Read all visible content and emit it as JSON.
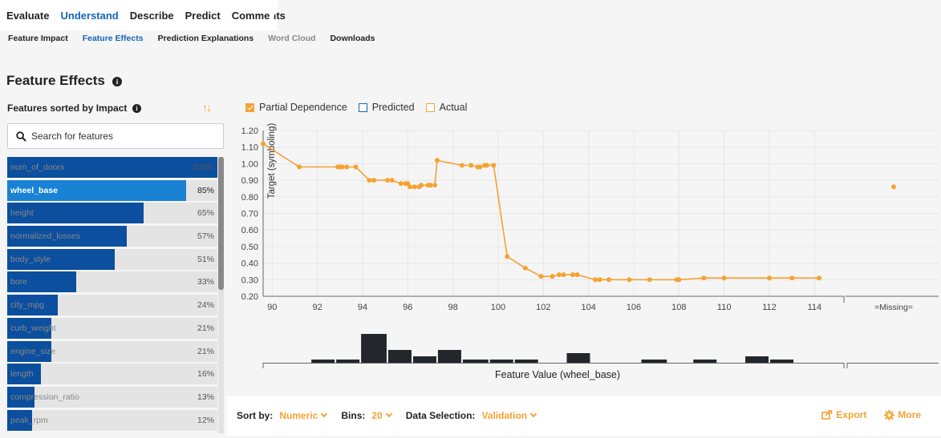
{
  "top_tabs": [
    "Evaluate",
    "Understand",
    "Describe",
    "Predict",
    "Comments"
  ],
  "sub_tabs": [
    "Feature Impact",
    "Feature Effects",
    "Prediction Explanations",
    "Word Cloud",
    "Downloads"
  ],
  "page_title": "Feature Effects",
  "sidebar": {
    "title": "Features sorted by Impact",
    "search_placeholder": "Search for features",
    "features": [
      {
        "name": "num_of_doors",
        "pct_label": "100%",
        "impact": 1.0
      },
      {
        "name": "wheel_base",
        "pct_label": "85%",
        "impact": 0.85,
        "selected": true
      },
      {
        "name": "height",
        "pct_label": "65%",
        "impact": 0.65
      },
      {
        "name": "normalized_losses",
        "pct_label": "57%",
        "impact": 0.57
      },
      {
        "name": "body_style",
        "pct_label": "51%",
        "impact": 0.51
      },
      {
        "name": "bore",
        "pct_label": "33%",
        "impact": 0.33
      },
      {
        "name": "city_mpg",
        "pct_label": "24%",
        "impact": 0.24
      },
      {
        "name": "curb_weight",
        "pct_label": "21%",
        "impact": 0.21
      },
      {
        "name": "engine_size",
        "pct_label": "21%",
        "impact": 0.21
      },
      {
        "name": "length",
        "pct_label": "16%",
        "impact": 0.16
      },
      {
        "name": "compression_ratio",
        "pct_label": "13%",
        "impact": 0.13
      },
      {
        "name": "peak_rpm",
        "pct_label": "12%",
        "impact": 0.12
      }
    ]
  },
  "legend": {
    "partial": "Partial Dependence",
    "predicted": "Predicted",
    "actual": "Actual"
  },
  "colors": {
    "accent": "#f5a233",
    "primary": "#1565b4",
    "bar_dark": "#0b4f9e",
    "bar_selected": "#1a82d4",
    "histogram": "#23272b"
  },
  "chart_data": {
    "type": "line",
    "ylabel": "Target (symboling)",
    "xlabel": "Feature Value (wheel_base)",
    "ylim": [
      0.2,
      1.2
    ],
    "yticks": [
      0.2,
      0.3,
      0.4,
      0.5,
      0.6,
      0.7,
      0.8,
      0.9,
      1.0,
      1.1,
      1.2
    ],
    "ytick_labels": [
      "0.20",
      "0.30",
      "0.40",
      "0.50",
      "0.60",
      "0.70",
      "0.80",
      "0.90",
      "1.00",
      "1.10",
      "1.20"
    ],
    "xlim": [
      89.6,
      115.3
    ],
    "xticks": [
      90,
      92,
      94,
      96,
      98,
      100,
      102,
      104,
      106,
      108,
      110,
      112,
      114
    ],
    "grid": true,
    "series": [
      {
        "name": "Partial Dependence",
        "x": [
          89.6,
          91.2,
          92.9,
          93.0,
          93.1,
          93.3,
          93.7,
          94.3,
          94.5,
          95.1,
          95.3,
          95.7,
          95.9,
          96.0,
          96.1,
          96.3,
          96.5,
          96.6,
          96.9,
          97.0,
          97.2,
          97.3,
          98.4,
          98.8,
          99.1,
          99.2,
          99.4,
          99.5,
          99.8,
          100.4,
          101.2,
          101.9,
          102.4,
          102.7,
          102.9,
          103.3,
          103.5,
          104.3,
          104.5,
          104.9,
          105.8,
          106.7,
          107.9,
          108.0,
          109.1,
          110.0,
          112.0,
          113.0,
          114.2
        ],
        "y": [
          1.12,
          0.98,
          0.98,
          0.98,
          0.98,
          0.98,
          0.98,
          0.9,
          0.9,
          0.9,
          0.9,
          0.88,
          0.88,
          0.88,
          0.86,
          0.86,
          0.86,
          0.87,
          0.87,
          0.87,
          0.87,
          1.02,
          0.99,
          0.99,
          0.98,
          0.98,
          0.99,
          0.99,
          0.99,
          0.44,
          0.37,
          0.32,
          0.32,
          0.33,
          0.33,
          0.33,
          0.33,
          0.3,
          0.3,
          0.3,
          0.3,
          0.3,
          0.3,
          0.3,
          0.31,
          0.31,
          0.31,
          0.31,
          0.31
        ]
      }
    ],
    "missing": {
      "label": "=Missing=",
      "y": 0.86
    },
    "histogram": {
      "bins": [
        90.5,
        91.7,
        92.8,
        93.9,
        95.1,
        96.2,
        97.3,
        98.4,
        99.6,
        100.7,
        101.8,
        103.0,
        104.1,
        105.2,
        106.3,
        107.5,
        108.6,
        109.7,
        110.9,
        112.0,
        113.1
      ],
      "counts": [
        0,
        1,
        1,
        9,
        4,
        2,
        4,
        1,
        1,
        1,
        0,
        3,
        0,
        0,
        1,
        0,
        1,
        0,
        2,
        1
      ]
    }
  },
  "bottom_bar": {
    "sort_label": "Sort by:",
    "sort_value": "Numeric",
    "bins_label": "Bins:",
    "bins_value": "20",
    "data_label": "Data Selection:",
    "data_value": "Validation",
    "export": "Export",
    "more": "More"
  }
}
